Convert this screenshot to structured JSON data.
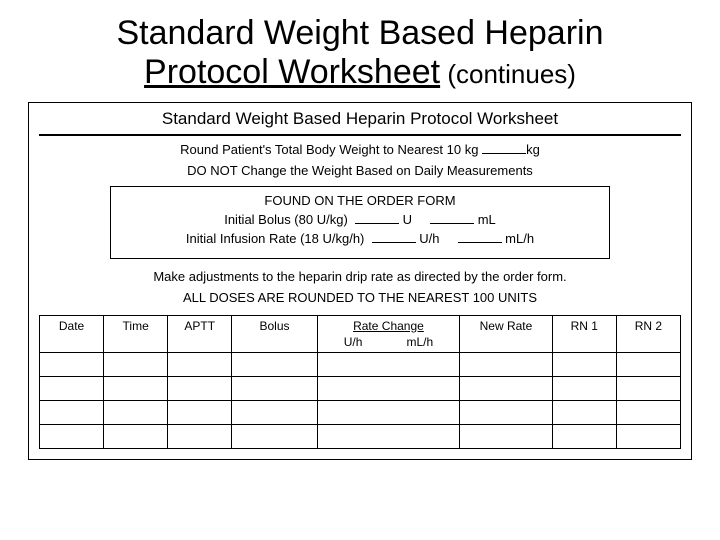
{
  "title": {
    "line1": "Standard Weight Based Heparin",
    "line2_underlined": "Protocol Worksheet",
    "line2_cont": " (continues)"
  },
  "subheader": "Standard Weight Based Heparin Protocol Worksheet",
  "weight_line_prefix": "Round Patient's Total Body Weight to Nearest 10 kg ",
  "weight_line_suffix": "kg",
  "no_change_line": "DO NOT Change the Weight Based on Daily Measurements",
  "order_box": {
    "caption": "FOUND ON THE ORDER FORM",
    "bolus_label": "Initial Bolus (80 U/kg)",
    "bolus_unit1": "U",
    "bolus_unit2": "mL",
    "infusion_label": "Initial Infusion Rate (18 U/kg/h)",
    "infusion_unit1": "U/h",
    "infusion_unit2": "mL/h"
  },
  "note1": "Make adjustments to the heparin drip rate as directed by the order form.",
  "note2": "ALL DOSES ARE ROUNDED TO THE NEAREST 100 UNITS",
  "table": {
    "headers": {
      "date": "Date",
      "time": "Time",
      "aptt": "APTT",
      "bolus": "Bolus",
      "rate_title": "Rate Change",
      "rate_sub1": "U/h",
      "rate_sub2": "mL/h",
      "newrate": "New Rate",
      "rn1": "RN 1",
      "rn2": "RN 2"
    },
    "blank_rows": 4
  },
  "blank_widths": {
    "w1": 44,
    "w2": 44,
    "w3": 44,
    "w4": 44,
    "w5": 44
  }
}
